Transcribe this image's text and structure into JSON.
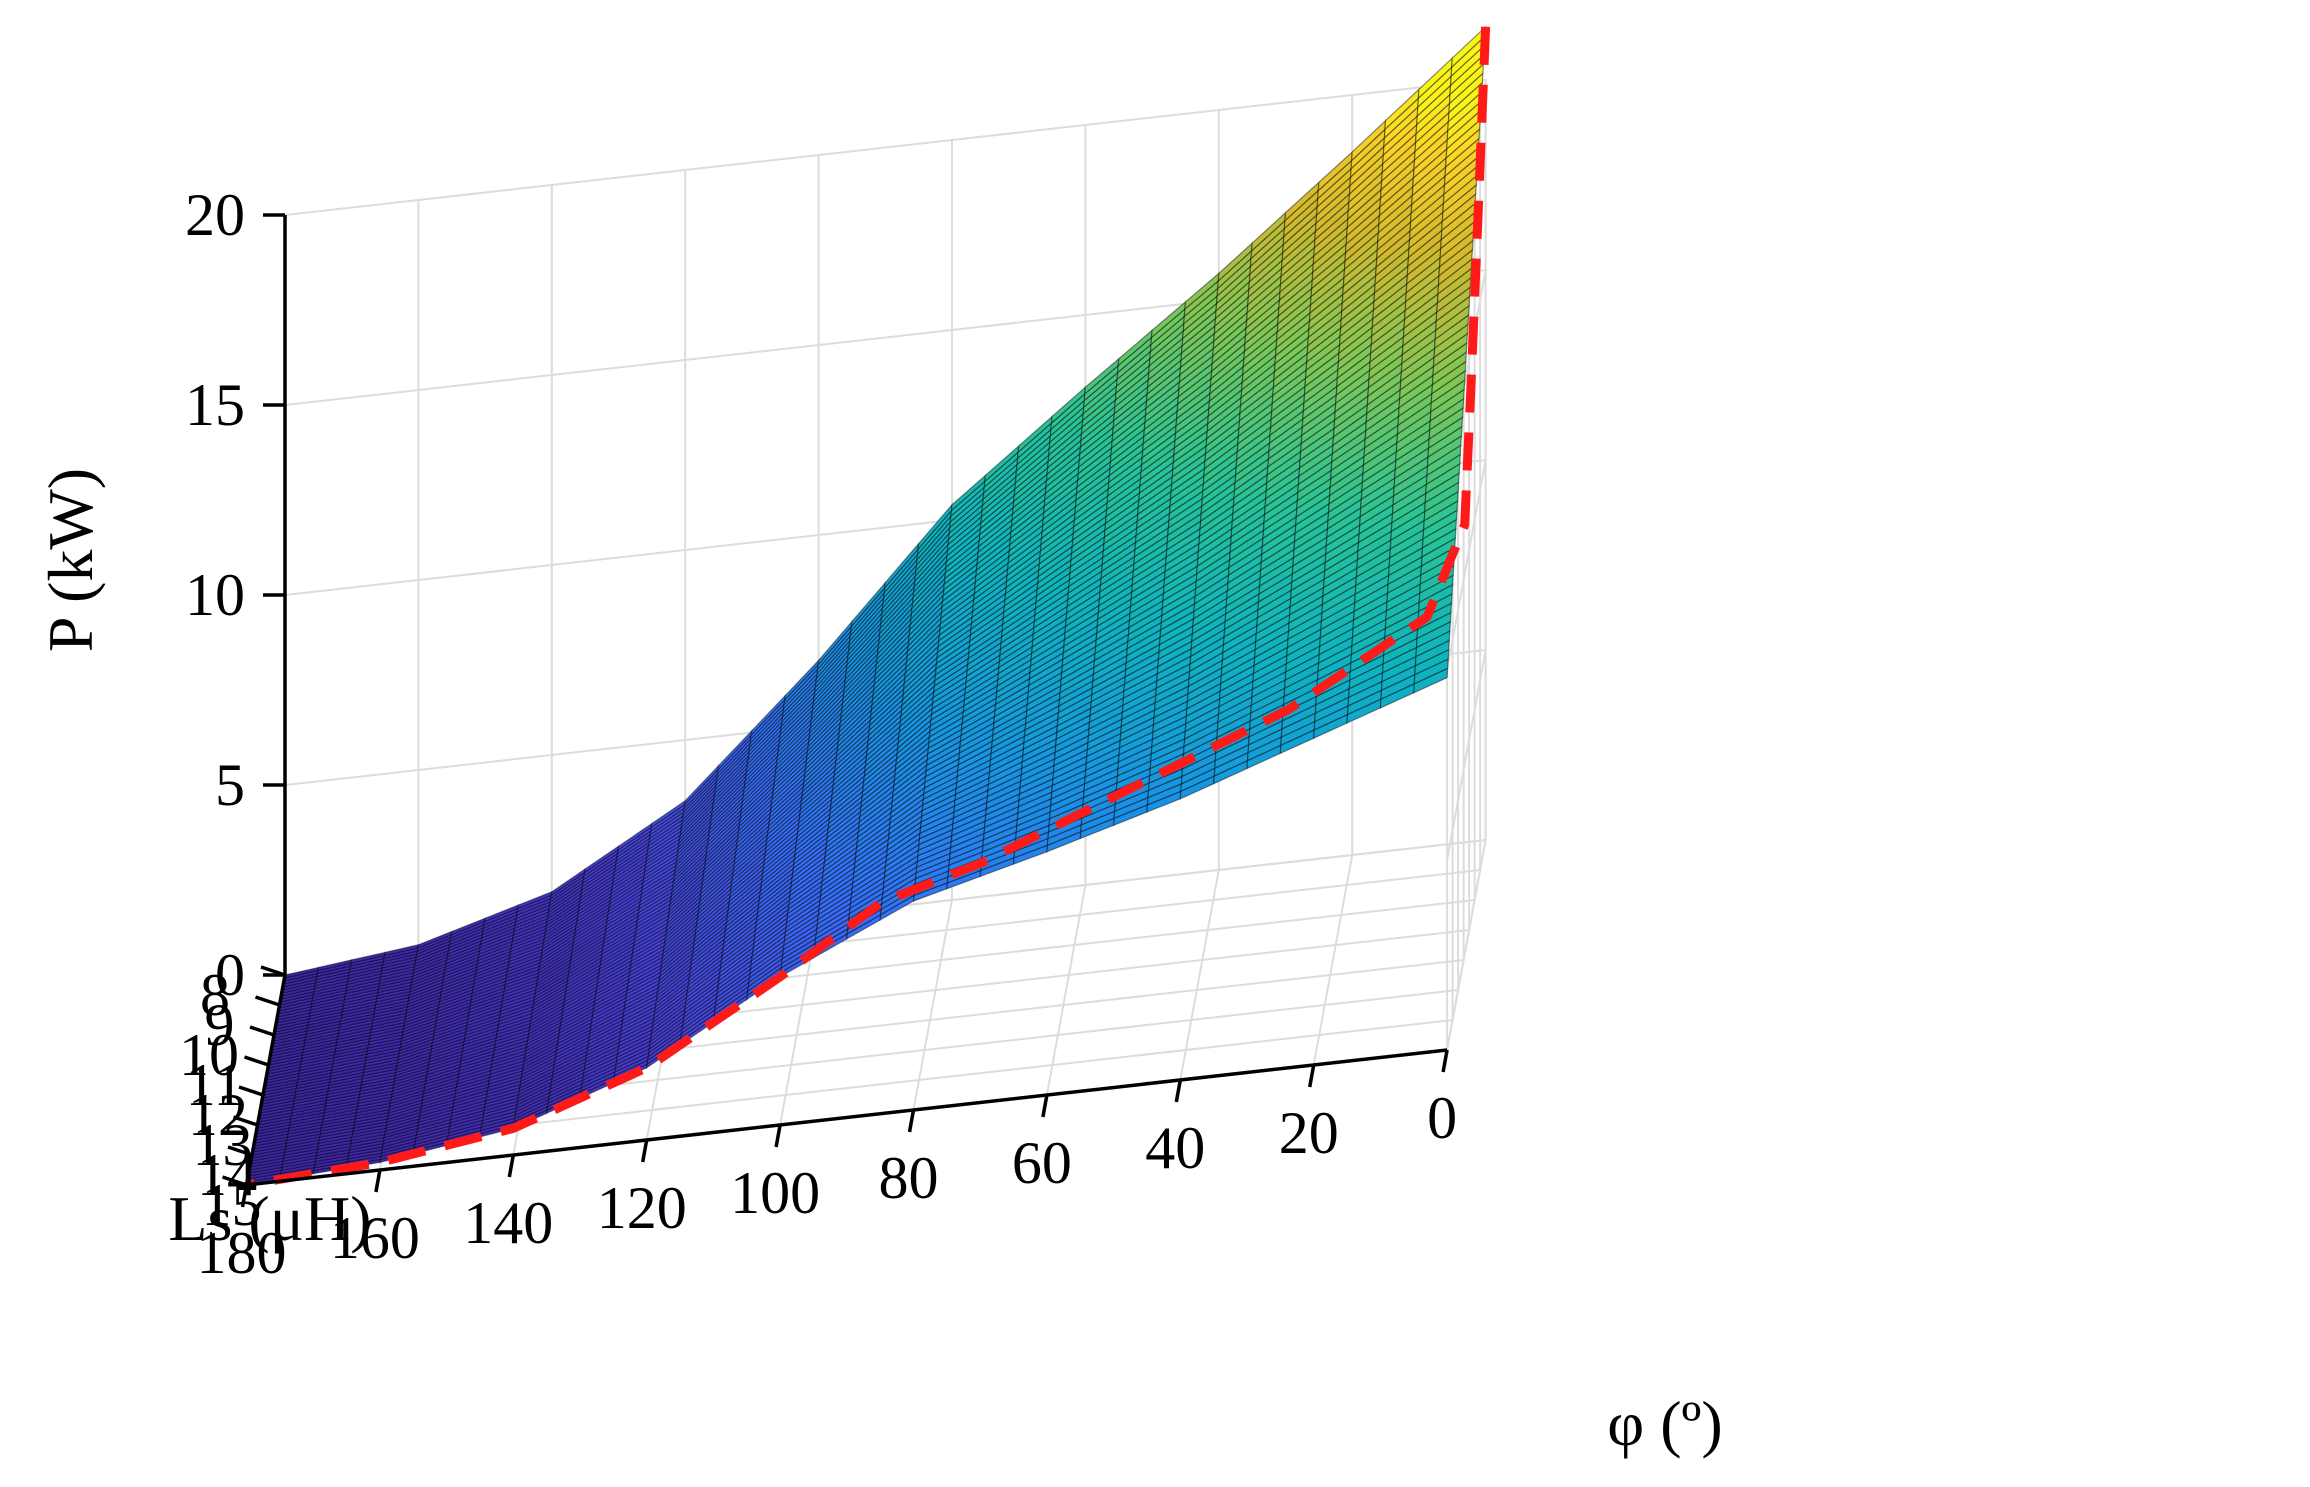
{
  "chart_data": {
    "type": "surface",
    "xlabel": "φ (º)",
    "ylabel": "Ls (μH)",
    "zlabel": "P (kW)",
    "x_ticks": [
      0,
      20,
      40,
      60,
      80,
      100,
      120,
      140,
      160,
      180
    ],
    "y_ticks": [
      8,
      9,
      10,
      11,
      12,
      13,
      14,
      15
    ],
    "z_ticks": [
      0,
      5,
      10,
      15,
      20
    ],
    "xlim": [
      0,
      180
    ],
    "ylim": [
      8,
      15
    ],
    "zlim": [
      0,
      20
    ],
    "grid": true,
    "colormap": "parula",
    "surface_grid": {
      "phi_deg": [
        0,
        20,
        40,
        60,
        80,
        100,
        120,
        140,
        160,
        180
      ],
      "Ls_uH": [
        8,
        15
      ],
      "P_kW": [
        [
          21.4,
          18.5,
          15.7,
          13.1,
          10.4,
          6.7,
          3.4,
          1.4,
          0.4,
          0.0
        ],
        [
          9.8,
          8.6,
          7.4,
          6.4,
          5.5,
          3.9,
          1.9,
          0.7,
          0.2,
          0.0
        ]
      ]
    },
    "series": [
      {
        "style": "dashed",
        "color": "#ff1a1a",
        "points": [
          {
            "Ls": 8.0,
            "phi": 0,
            "P": 21.4
          },
          {
            "Ls": 9.2,
            "phi": 0,
            "P": 18.0
          },
          {
            "Ls": 10.6,
            "phi": 0,
            "P": 14.2
          },
          {
            "Ls": 11.8,
            "phi": 0,
            "P": 11.3
          },
          {
            "Ls": 12.6,
            "phi": 5,
            "P": 9.6
          },
          {
            "Ls": 13.4,
            "phi": 25,
            "P": 8.2
          },
          {
            "Ls": 14.1,
            "phi": 50,
            "P": 7.0
          },
          {
            "Ls": 14.6,
            "phi": 70,
            "P": 6.0
          },
          {
            "Ls": 14.8,
            "phi": 85,
            "P": 5.4
          },
          {
            "Ls": 15.0,
            "phi": 100,
            "P": 3.9
          },
          {
            "Ls": 15.0,
            "phi": 120,
            "P": 1.9
          },
          {
            "Ls": 15.0,
            "phi": 140,
            "P": 0.7
          },
          {
            "Ls": 15.0,
            "phi": 160,
            "P": 0.2
          },
          {
            "Ls": 15.0,
            "phi": 180,
            "P": 0.0
          }
        ]
      }
    ]
  }
}
